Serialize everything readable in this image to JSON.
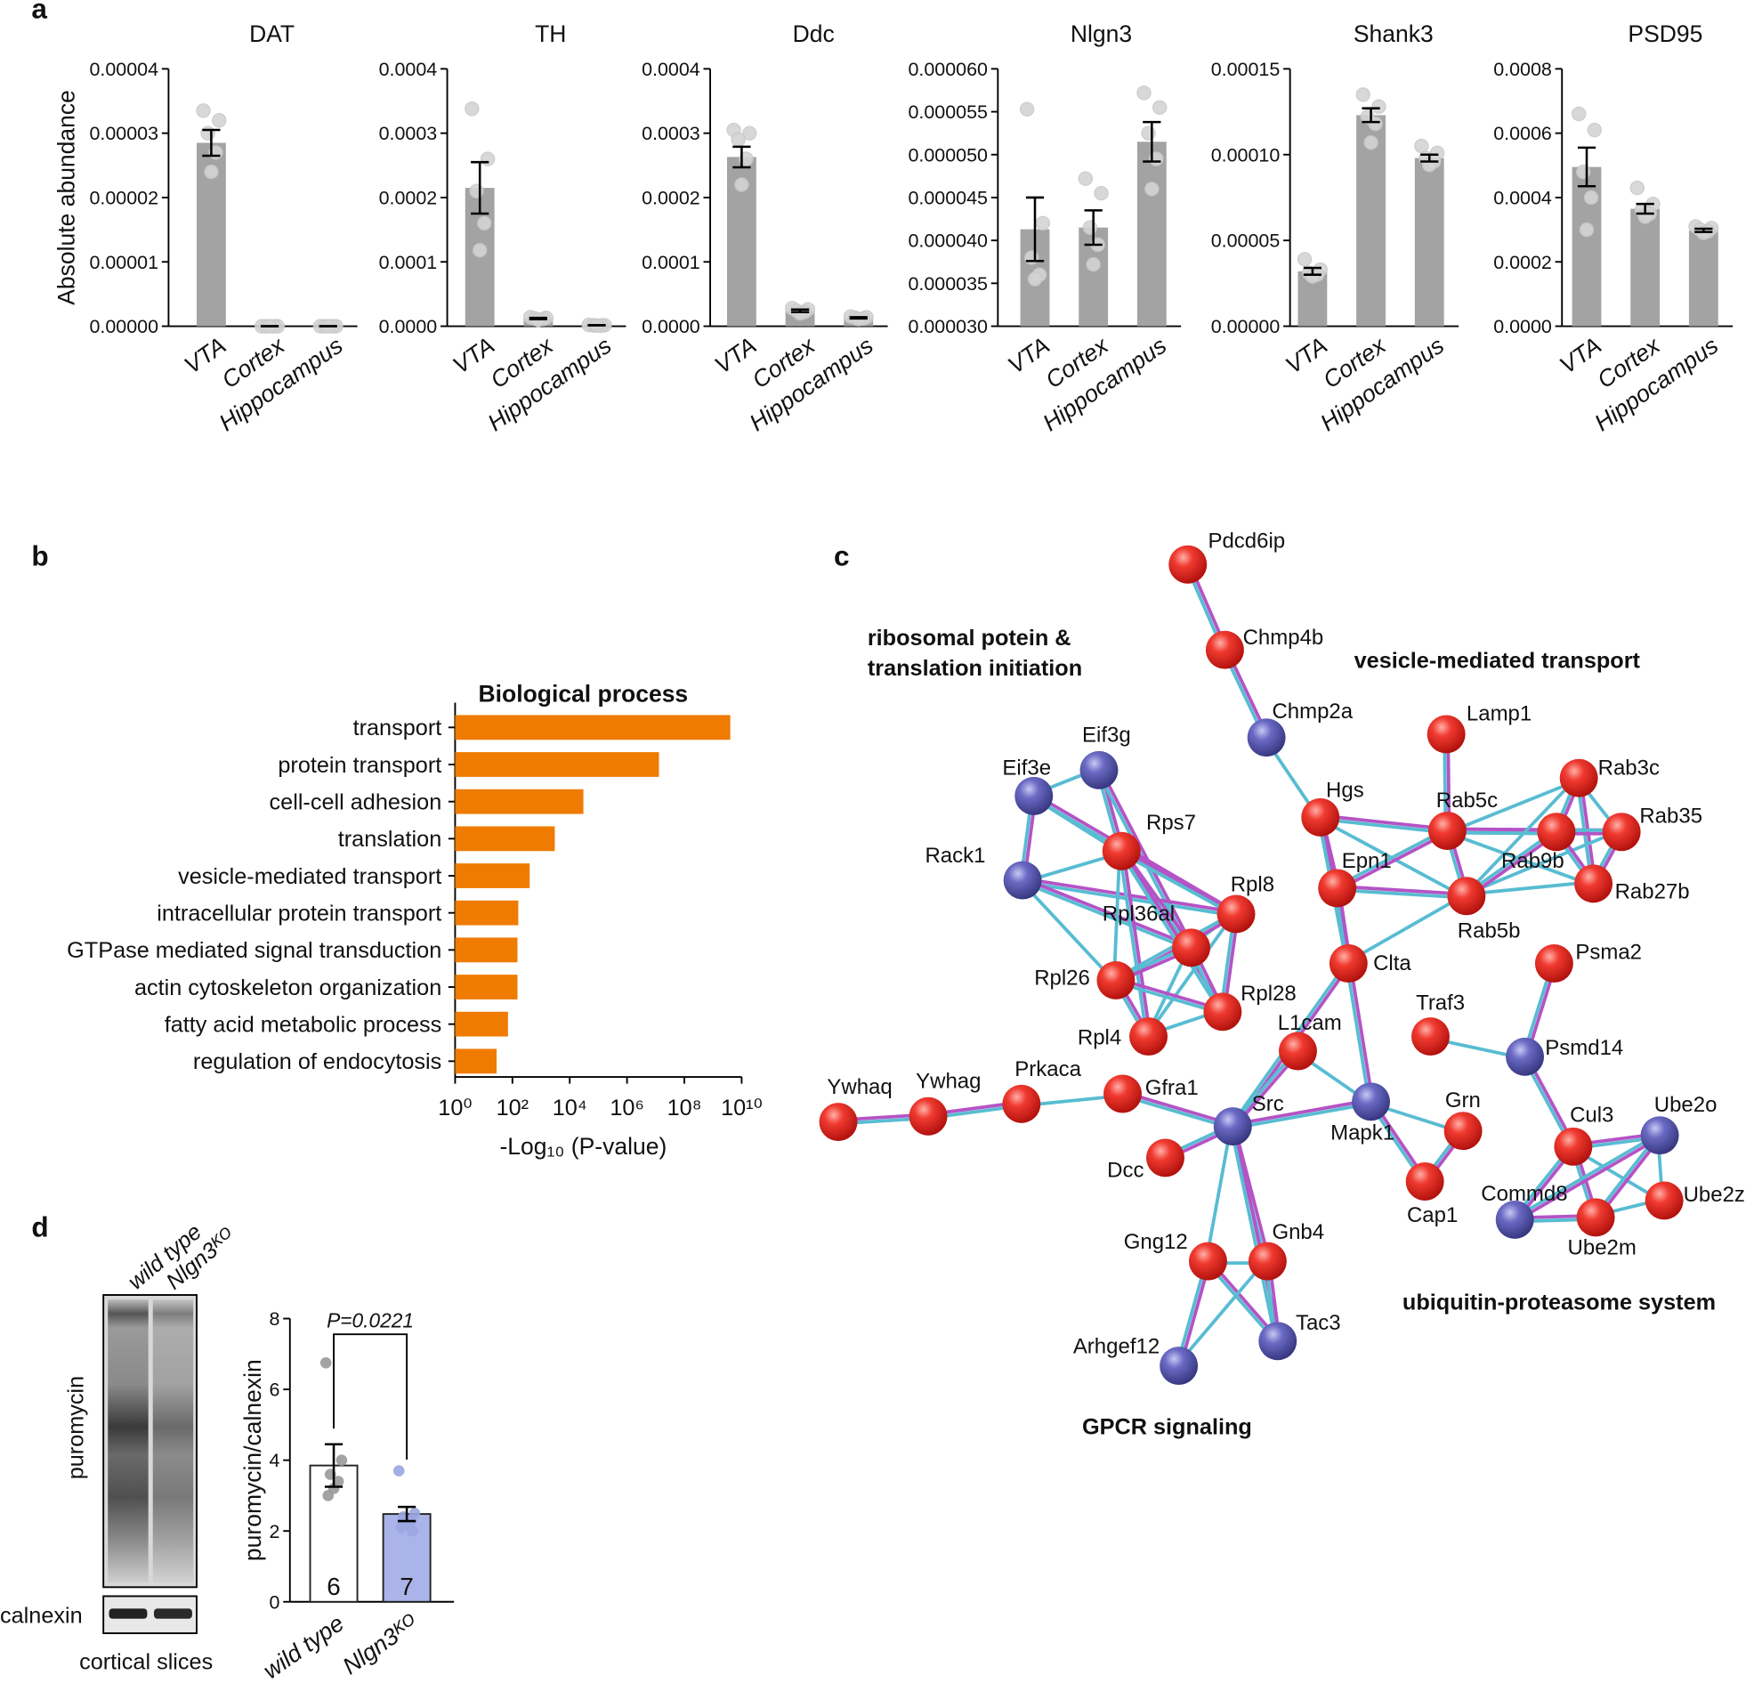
{
  "panels": [
    "a",
    "b",
    "c",
    "d"
  ],
  "chart_data": [
    {
      "type": "bar",
      "title": "DAT",
      "ylabel": "Absolute abundance",
      "categories": [
        "VTA",
        "Cortex",
        "Hippocampus"
      ],
      "values": [
        2.85e-05,
        0,
        0
      ],
      "errors": [
        2e-06,
        0,
        0
      ],
      "points": [
        [
          3.35e-05,
          3.2e-05,
          3e-05,
          2.7e-05,
          2.4e-05
        ],
        [
          0,
          0,
          0,
          0,
          0
        ],
        [
          0,
          0,
          0,
          0,
          0
        ]
      ],
      "color": "#a3a3a3",
      "ylim": [
        0,
        4e-05
      ],
      "yticks": [
        {
          "value": 0,
          "label": "0.00000"
        },
        {
          "value": 1e-05,
          "label": "0.00001"
        },
        {
          "value": 2e-05,
          "label": "0.00002"
        },
        {
          "value": 3e-05,
          "label": "0.00003"
        },
        {
          "value": 4e-05,
          "label": "0.00004"
        }
      ]
    },
    {
      "type": "bar",
      "title": "TH",
      "categories": [
        "VTA",
        "Cortex",
        "Hippocampus"
      ],
      "values": [
        0.000215,
        1.2e-05,
        1.5e-06
      ],
      "errors": [
        4e-05,
        1e-06,
        0
      ],
      "points": [
        [
          0.000338,
          0.00026,
          0.00021,
          0.00016,
          0.000118
        ],
        [
          1.4e-05,
          1.3e-05,
          1.2e-05,
          1.1e-05,
          1e-05
        ],
        [
          2e-06,
          1.5e-06,
          1.5e-06,
          1e-06,
          1e-06
        ]
      ],
      "color": "#a3a3a3",
      "ylim": [
        0,
        0.0004
      ],
      "yticks": [
        {
          "value": 0,
          "label": "0.0000"
        },
        {
          "value": 0.0001,
          "label": "0.0001"
        },
        {
          "value": 0.0002,
          "label": "0.0002"
        },
        {
          "value": 0.0003,
          "label": "0.0003"
        },
        {
          "value": 0.0004,
          "label": "0.0004"
        }
      ]
    },
    {
      "type": "bar",
      "title": "Ddc",
      "categories": [
        "VTA",
        "Cortex",
        "Hippocampus"
      ],
      "values": [
        0.000263,
        2.4e-05,
        1.3e-05
      ],
      "errors": [
        1.6e-05,
        2e-06,
        1e-06
      ],
      "points": [
        [
          0.000305,
          0.0003,
          0.00029,
          0.00026,
          0.00022
        ],
        [
          2.8e-05,
          2.6e-05,
          2.4e-05,
          2.2e-05,
          2e-05
        ],
        [
          1.5e-05,
          1.4e-05,
          1.3e-05,
          1.2e-05,
          1.1e-05
        ]
      ],
      "color": "#a3a3a3",
      "ylim": [
        0,
        0.0004
      ],
      "yticks": [
        {
          "value": 0,
          "label": "0.0000"
        },
        {
          "value": 0.0001,
          "label": "0.0001"
        },
        {
          "value": 0.0002,
          "label": "0.0002"
        },
        {
          "value": 0.0003,
          "label": "0.0003"
        },
        {
          "value": 0.0004,
          "label": "0.0004"
        }
      ]
    },
    {
      "type": "bar",
      "title": "Nlgn3",
      "categories": [
        "VTA",
        "Cortex",
        "Hippocampus"
      ],
      "values": [
        4.13e-05,
        4.15e-05,
        5.15e-05
      ],
      "errors": [
        3.7e-06,
        2e-06,
        2.3e-06
      ],
      "points": [
        [
          5.53e-05,
          4.2e-05,
          3.8e-05,
          3.6e-05,
          3.55e-05
        ],
        [
          4.72e-05,
          4.55e-05,
          4.15e-05,
          3.95e-05,
          3.72e-05
        ],
        [
          5.72e-05,
          5.55e-05,
          5.25e-05,
          4.95e-05,
          4.6e-05
        ]
      ],
      "color": "#a3a3a3",
      "ylim": [
        3e-05,
        6e-05
      ],
      "yticks": [
        {
          "value": 3e-05,
          "label": "0.000030"
        },
        {
          "value": 3.5e-05,
          "label": "0.000035"
        },
        {
          "value": 4e-05,
          "label": "0.000040"
        },
        {
          "value": 4.5e-05,
          "label": "0.000045"
        },
        {
          "value": 5e-05,
          "label": "0.000050"
        },
        {
          "value": 5.5e-05,
          "label": "0.000055"
        },
        {
          "value": 6e-05,
          "label": "0.000060"
        }
      ]
    },
    {
      "type": "bar",
      "title": "Shank3",
      "categories": [
        "VTA",
        "Cortex",
        "Hippocampus"
      ],
      "values": [
        3.2e-05,
        0.000123,
        9.8e-05
      ],
      "errors": [
        2e-06,
        4e-06,
        2e-06
      ],
      "points": [
        [
          3.9e-05,
          3.3e-05,
          3.1e-05,
          3e-05,
          2.9e-05
        ],
        [
          0.000135,
          0.000128,
          0.000122,
          0.000118,
          0.000107
        ],
        [
          0.000105,
          0.000101,
          9.8e-05,
          9.6e-05,
          9.4e-05
        ]
      ],
      "color": "#a3a3a3",
      "ylim": [
        0,
        0.00015
      ],
      "yticks": [
        {
          "value": 0,
          "label": "0.00000"
        },
        {
          "value": 5e-05,
          "label": "0.00005"
        },
        {
          "value": 0.0001,
          "label": "0.00010"
        },
        {
          "value": 0.00015,
          "label": "0.00015"
        }
      ]
    },
    {
      "type": "bar",
      "title": "PSD95",
      "categories": [
        "VTA",
        "Cortex",
        "Hippocampus"
      ],
      "values": [
        0.000495,
        0.000365,
        0.000298
      ],
      "errors": [
        6e-05,
        1.5e-05,
        5e-06
      ],
      "points": [
        [
          0.00066,
          0.00061,
          0.00048,
          0.0004,
          0.0003
        ],
        [
          0.00043,
          0.00038,
          0.00036,
          0.00035,
          0.00034
        ],
        [
          0.00031,
          0.000305,
          0.0003,
          0.000295,
          0.00029
        ]
      ],
      "color": "#a3a3a3",
      "ylim": [
        0,
        0.0008
      ],
      "yticks": [
        {
          "value": 0,
          "label": "0.0000"
        },
        {
          "value": 0.0002,
          "label": "0.0002"
        },
        {
          "value": 0.0004,
          "label": "0.0004"
        },
        {
          "value": 0.0006,
          "label": "0.0006"
        },
        {
          "value": 0.0008,
          "label": "0.0008"
        }
      ]
    },
    {
      "type": "barh",
      "title": "Biological process",
      "xlabel": "-Log₁₀ (P-value)",
      "categories": [
        "transport",
        "protein transport",
        "cell-cell adhesion",
        "translation",
        "vesicle-mediated transport",
        "intracellular protein transport",
        "GTPase mediated signal transduction",
        "actin cytoskeleton organization",
        "fatty acid metabolic process",
        "regulation of endocytosis"
      ],
      "values": [
        4000000000,
        13000000,
        30000,
        3000,
        400,
        160,
        150,
        150,
        70,
        28
      ],
      "color": "#ef7b00",
      "log_x": true,
      "xlim": [
        1,
        10000000000
      ],
      "xticks": [
        {
          "value": 1,
          "label": "10⁰"
        },
        {
          "value": 100,
          "label": "10²"
        },
        {
          "value": 10000,
          "label": "10⁴"
        },
        {
          "value": 1000000,
          "label": "10⁶"
        },
        {
          "value": 100000000,
          "label": "10⁸"
        },
        {
          "value": 10000000000,
          "label": "10¹⁰"
        }
      ]
    },
    {
      "type": "bar",
      "ylabel": "puromycin/calnexin",
      "categories": [
        "wild type",
        "Nlgn3ᴷᴼ"
      ],
      "values": [
        3.85,
        2.48
      ],
      "errors": [
        0.6,
        0.2
      ],
      "n": [
        6,
        7
      ],
      "points": [
        [
          6.75,
          4.0,
          3.6,
          3.4,
          3.2,
          3.0
        ],
        [
          3.7,
          2.5,
          2.4,
          2.3,
          2.2,
          2.1,
          2.0
        ]
      ],
      "colors": [
        "#ffffff",
        "#aab4e8"
      ],
      "annotation": "P=0.0221",
      "ylim": [
        0,
        8
      ],
      "yticks": [
        0,
        2,
        4,
        6,
        8
      ]
    }
  ],
  "network": {
    "groups": [
      {
        "text": [
          "ribosomal potein &",
          "translation initiation"
        ]
      },
      {
        "text": [
          "vesicle-mediated transport"
        ]
      },
      {
        "text": [
          "ubiquitin-proteasome system"
        ]
      },
      {
        "text": [
          "GPCR signaling"
        ]
      }
    ],
    "nodes": [
      {
        "label": "Pdcd6ip",
        "color": "red"
      },
      {
        "label": "Chmp4b",
        "color": "red"
      },
      {
        "label": "Chmp2a",
        "color": "blue"
      },
      {
        "label": "Hgs",
        "color": "red"
      },
      {
        "label": "Lamp1",
        "color": "red"
      },
      {
        "label": "Rab5c",
        "color": "red"
      },
      {
        "label": "Rab3c",
        "color": "red"
      },
      {
        "label": "Rab35",
        "color": "red"
      },
      {
        "label": "Rab9b",
        "color": "red"
      },
      {
        "label": "Rab27b",
        "color": "red"
      },
      {
        "label": "Epn1",
        "color": "red"
      },
      {
        "label": "Rab5b",
        "color": "red"
      },
      {
        "label": "Clta",
        "color": "red"
      },
      {
        "label": "Eif3g",
        "color": "blue"
      },
      {
        "label": "Eif3e",
        "color": "blue"
      },
      {
        "label": "Rack1",
        "color": "blue"
      },
      {
        "label": "Rps7",
        "color": "red"
      },
      {
        "label": "Rpl8",
        "color": "red"
      },
      {
        "label": "Rpl36al",
        "color": "red"
      },
      {
        "label": "Rpl26",
        "color": "red"
      },
      {
        "label": "Rpl28",
        "color": "red"
      },
      {
        "label": "Rpl4",
        "color": "red"
      },
      {
        "label": "L1cam",
        "color": "red"
      },
      {
        "label": "Ywhaq",
        "color": "red"
      },
      {
        "label": "Ywhag",
        "color": "red"
      },
      {
        "label": "Prkaca",
        "color": "red"
      },
      {
        "label": "Gfra1",
        "color": "red"
      },
      {
        "label": "Src",
        "color": "blue"
      },
      {
        "label": "Mapk1",
        "color": "blue"
      },
      {
        "label": "Grn",
        "color": "red"
      },
      {
        "label": "Cap1",
        "color": "red"
      },
      {
        "label": "Dcc",
        "color": "red"
      },
      {
        "label": "Gng12",
        "color": "red"
      },
      {
        "label": "Gnb4",
        "color": "red"
      },
      {
        "label": "Tac3",
        "color": "blue"
      },
      {
        "label": "Arhgef12",
        "color": "blue"
      },
      {
        "label": "Psma2",
        "color": "red"
      },
      {
        "label": "Traf3",
        "color": "red"
      },
      {
        "label": "Psmd14",
        "color": "blue"
      },
      {
        "label": "Cul3",
        "color": "red"
      },
      {
        "label": "Ube2o",
        "color": "blue"
      },
      {
        "label": "Ube2z",
        "color": "red"
      },
      {
        "label": "Ube2m",
        "color": "red"
      },
      {
        "label": "Commd8",
        "color": "blue"
      }
    ]
  },
  "blot": {
    "lanes": [
      "wild type",
      "Nlgn3ᴷᴼ"
    ],
    "bands": [
      "puromycin",
      "calnexin"
    ],
    "caption": "cortical slices"
  }
}
